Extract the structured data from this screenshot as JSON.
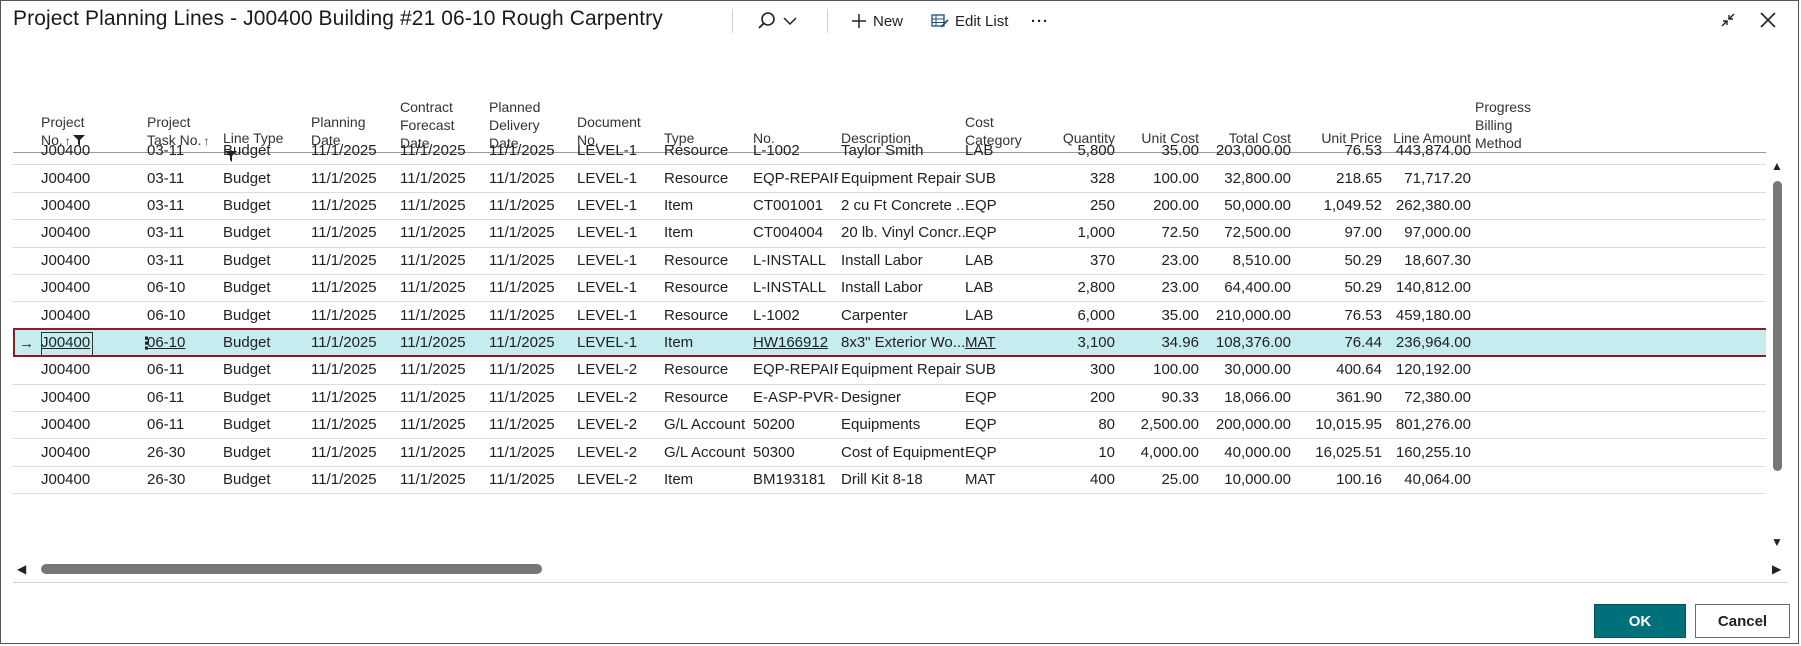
{
  "window": {
    "title": "Project Planning Lines - J00400 Building #21 06-10 Rough Carpentry"
  },
  "toolbar": {
    "search_icon": "search-icon",
    "new_label": "New",
    "edit_list_label": "Edit List",
    "more_label": "···"
  },
  "columns": [
    {
      "key": "project_no",
      "label": "Project\nNo.",
      "sort": "↑",
      "filter": true
    },
    {
      "key": "task_no",
      "label": "Project\nTask No.",
      "sort": "↑",
      "filter": false
    },
    {
      "key": "line_type",
      "label": "Line Type",
      "sort": "",
      "filter": true
    },
    {
      "key": "planning_date",
      "label": "Planning\nDate",
      "sort": "",
      "filter": false
    },
    {
      "key": "contract_forecast",
      "label": "Contract\nForecast\nDate",
      "sort": "",
      "filter": false
    },
    {
      "key": "planned_delivery",
      "label": "Planned\nDelivery\nDate",
      "sort": "",
      "filter": false
    },
    {
      "key": "document_no",
      "label": "Document\nNo.",
      "sort": "",
      "filter": false
    },
    {
      "key": "type",
      "label": "Type",
      "sort": "",
      "filter": false
    },
    {
      "key": "no",
      "label": "No.",
      "sort": "",
      "filter": false
    },
    {
      "key": "description",
      "label": "Description",
      "sort": "",
      "filter": false
    },
    {
      "key": "cost_category",
      "label": "Cost\nCategory",
      "sort": "",
      "filter": false
    },
    {
      "key": "quantity",
      "label": "Quantity",
      "sort": "",
      "filter": false
    },
    {
      "key": "unit_cost",
      "label": "Unit Cost",
      "sort": "",
      "filter": false
    },
    {
      "key": "total_cost",
      "label": "Total Cost",
      "sort": "",
      "filter": false
    },
    {
      "key": "unit_price",
      "label": "Unit Price",
      "sort": "",
      "filter": false
    },
    {
      "key": "line_amount",
      "label": "Line Amount",
      "sort": "",
      "filter": false
    },
    {
      "key": "billing_method",
      "label": "Progress\nBilling\nMethod",
      "sort": "",
      "filter": false
    }
  ],
  "rows": [
    [
      "J00400",
      "03-11",
      "Budget",
      "11/1/2025",
      "11/1/2025",
      "11/1/2025",
      "LEVEL-1",
      "Resource",
      "L-1002",
      "Taylor Smith",
      "LAB",
      "5,800",
      "35.00",
      "203,000.00",
      "76.53",
      "443,874.00",
      ""
    ],
    [
      "J00400",
      "03-11",
      "Budget",
      "11/1/2025",
      "11/1/2025",
      "11/1/2025",
      "LEVEL-1",
      "Resource",
      "EQP-REPAIR",
      "Equipment Repair",
      "SUB",
      "328",
      "100.00",
      "32,800.00",
      "218.65",
      "71,717.20",
      ""
    ],
    [
      "J00400",
      "03-11",
      "Budget",
      "11/1/2025",
      "11/1/2025",
      "11/1/2025",
      "LEVEL-1",
      "Item",
      "CT001001",
      "2 cu Ft Concrete ...",
      "EQP",
      "250",
      "200.00",
      "50,000.00",
      "1,049.52",
      "262,380.00",
      ""
    ],
    [
      "J00400",
      "03-11",
      "Budget",
      "11/1/2025",
      "11/1/2025",
      "11/1/2025",
      "LEVEL-1",
      "Item",
      "CT004004",
      "20 lb. Vinyl Concr...",
      "EQP",
      "1,000",
      "72.50",
      "72,500.00",
      "97.00",
      "97,000.00",
      ""
    ],
    [
      "J00400",
      "03-11",
      "Budget",
      "11/1/2025",
      "11/1/2025",
      "11/1/2025",
      "LEVEL-1",
      "Resource",
      "L-INSTALL",
      "Install Labor",
      "LAB",
      "370",
      "23.00",
      "8,510.00",
      "50.29",
      "18,607.30",
      ""
    ],
    [
      "J00400",
      "06-10",
      "Budget",
      "11/1/2025",
      "11/1/2025",
      "11/1/2025",
      "LEVEL-1",
      "Resource",
      "L-INSTALL",
      "Install Labor",
      "LAB",
      "2,800",
      "23.00",
      "64,400.00",
      "50.29",
      "140,812.00",
      ""
    ],
    [
      "J00400",
      "06-10",
      "Budget",
      "11/1/2025",
      "11/1/2025",
      "11/1/2025",
      "LEVEL-1",
      "Resource",
      "L-1002",
      "Carpenter",
      "LAB",
      "6,000",
      "35.00",
      "210,000.00",
      "76.53",
      "459,180.00",
      ""
    ],
    [
      "J00400",
      "06-10",
      "Budget",
      "11/1/2025",
      "11/1/2025",
      "11/1/2025",
      "LEVEL-1",
      "Item",
      "HW166912",
      "8x3\" Exterior Wo...",
      "MAT",
      "3,100",
      "34.96",
      "108,376.00",
      "76.44",
      "236,964.00",
      ""
    ],
    [
      "J00400",
      "06-11",
      "Budget",
      "11/1/2025",
      "11/1/2025",
      "11/1/2025",
      "LEVEL-2",
      "Resource",
      "EQP-REPAIR",
      "Equipment Repair",
      "SUB",
      "300",
      "100.00",
      "30,000.00",
      "400.64",
      "120,192.00",
      ""
    ],
    [
      "J00400",
      "06-11",
      "Budget",
      "11/1/2025",
      "11/1/2025",
      "11/1/2025",
      "LEVEL-2",
      "Resource",
      "E-ASP-PVR-B",
      "Designer",
      "EQP",
      "200",
      "90.33",
      "18,066.00",
      "361.90",
      "72,380.00",
      ""
    ],
    [
      "J00400",
      "06-11",
      "Budget",
      "11/1/2025",
      "11/1/2025",
      "11/1/2025",
      "LEVEL-2",
      "G/L Account",
      "50200",
      "Equipments",
      "EQP",
      "80",
      "2,500.00",
      "200,000.00",
      "10,015.95",
      "801,276.00",
      ""
    ],
    [
      "J00400",
      "26-30",
      "Budget",
      "11/1/2025",
      "11/1/2025",
      "11/1/2025",
      "LEVEL-2",
      "G/L Account",
      "50300",
      "Cost of Equipment",
      "EQP",
      "10",
      "4,000.00",
      "40,000.00",
      "16,025.51",
      "160,255.10",
      ""
    ],
    [
      "J00400",
      "26-30",
      "Budget",
      "11/1/2025",
      "11/1/2025",
      "11/1/2025",
      "LEVEL-2",
      "Item",
      "BM193181",
      "Drill Kit 8-18",
      "MAT",
      "400",
      "25.00",
      "10,000.00",
      "100.16",
      "40,064.00",
      ""
    ]
  ],
  "selected_row_index": 7,
  "row_indicator": "→",
  "row_menu": "⋮",
  "colors": {
    "selected_row": "#c5ecef",
    "selected_border": "#8b1c2a",
    "ok_button": "#00707a"
  },
  "footer": {
    "ok_label": "OK",
    "cancel_label": "Cancel"
  }
}
